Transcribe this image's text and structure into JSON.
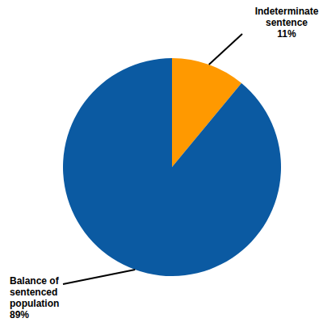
{
  "chart_data": {
    "type": "pie",
    "categories": [
      "Indeterminate sentence",
      "Balance of sentenced population"
    ],
    "values": [
      11,
      89
    ],
    "value_labels": [
      "11%",
      "89%"
    ],
    "colors": [
      "#ff9900",
      "#0b5aa2"
    ],
    "data_labels": true
  }
}
